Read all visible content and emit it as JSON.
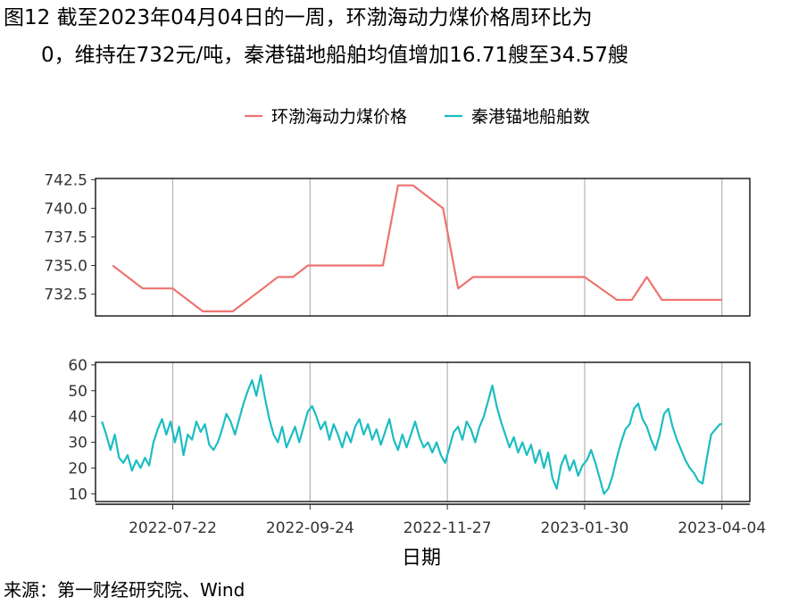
{
  "title": {
    "line1": "图12  截至2023年04月04日的一周，环渤海动力煤价格周环比为",
    "line2": "0，维持在732元/吨，秦港锚地船舶均值增加16.71艘至34.57艘"
  },
  "source": "来源：第一财经研究院、Wind",
  "colors": {
    "coal": "#ED7470",
    "ships": "#1CBDC2",
    "grid": "#b3b3b3"
  },
  "chart_data": [
    {
      "type": "line",
      "x_type": "date",
      "xlabel": "日期",
      "x_ticks": [
        "2022-07-22",
        "2022-09-24",
        "2022-11-27",
        "2023-01-30",
        "2023-04-04"
      ],
      "x_range": [
        "2022-06-16",
        "2023-04-17"
      ],
      "y_ticks": [
        "732.5",
        "735.0",
        "737.5",
        "740.0",
        "742.5"
      ],
      "ylim": [
        730.6,
        742.6
      ],
      "legend": "top-center",
      "series": [
        {
          "name": "环渤海动力煤价格",
          "color": "#ED7470",
          "points": [
            [
              "2022-06-24",
              735
            ],
            [
              "2022-07-08",
              733
            ],
            [
              "2022-07-22",
              733
            ],
            [
              "2022-08-05",
              731
            ],
            [
              "2022-08-19",
              731
            ],
            [
              "2022-09-02",
              733
            ],
            [
              "2022-09-09",
              734
            ],
            [
              "2022-09-16",
              734
            ],
            [
              "2022-09-23",
              735
            ],
            [
              "2022-10-28",
              735
            ],
            [
              "2022-11-04",
              742
            ],
            [
              "2022-11-11",
              742
            ],
            [
              "2022-11-25",
              740
            ],
            [
              "2022-12-02",
              733
            ],
            [
              "2022-12-09",
              734
            ],
            [
              "2023-01-30",
              734
            ],
            [
              "2023-02-14",
              732
            ],
            [
              "2023-02-21",
              732
            ],
            [
              "2023-02-28",
              734
            ],
            [
              "2023-03-07",
              732
            ],
            [
              "2023-03-21",
              732
            ],
            [
              "2023-04-04",
              732
            ]
          ]
        }
      ]
    },
    {
      "type": "line",
      "x_type": "date",
      "xlabel": "日期",
      "x_ticks": [
        "2022-07-22",
        "2022-09-24",
        "2022-11-27",
        "2023-01-30",
        "2023-04-04"
      ],
      "x_range": [
        "2022-06-16",
        "2023-04-17"
      ],
      "y_ticks": [
        "10",
        "20",
        "30",
        "40",
        "50",
        "60"
      ],
      "ylim": [
        7,
        61
      ],
      "series": [
        {
          "name": "秦港锚地船舶数",
          "color": "#1CBDC2",
          "points": [
            [
              "2022-06-19",
              38
            ],
            [
              "2022-06-21",
              33
            ],
            [
              "2022-06-23",
              27
            ],
            [
              "2022-06-25",
              33
            ],
            [
              "2022-06-27",
              24
            ],
            [
              "2022-06-29",
              22
            ],
            [
              "2022-07-01",
              25
            ],
            [
              "2022-07-03",
              19
            ],
            [
              "2022-07-05",
              23
            ],
            [
              "2022-07-07",
              20
            ],
            [
              "2022-07-09",
              24
            ],
            [
              "2022-07-11",
              21
            ],
            [
              "2022-07-13",
              30
            ],
            [
              "2022-07-15",
              35
            ],
            [
              "2022-07-17",
              39
            ],
            [
              "2022-07-19",
              33
            ],
            [
              "2022-07-21",
              38
            ],
            [
              "2022-07-23",
              30
            ],
            [
              "2022-07-25",
              36
            ],
            [
              "2022-07-27",
              25
            ],
            [
              "2022-07-29",
              33
            ],
            [
              "2022-07-31",
              31
            ],
            [
              "2022-08-02",
              38
            ],
            [
              "2022-08-04",
              34
            ],
            [
              "2022-08-06",
              37
            ],
            [
              "2022-08-08",
              29
            ],
            [
              "2022-08-10",
              27
            ],
            [
              "2022-08-12",
              30
            ],
            [
              "2022-08-14",
              35
            ],
            [
              "2022-08-16",
              41
            ],
            [
              "2022-08-18",
              38
            ],
            [
              "2022-08-20",
              33
            ],
            [
              "2022-08-22",
              39
            ],
            [
              "2022-08-24",
              45
            ],
            [
              "2022-08-26",
              50
            ],
            [
              "2022-08-28",
              54
            ],
            [
              "2022-08-30",
              48
            ],
            [
              "2022-09-01",
              56
            ],
            [
              "2022-09-03",
              47
            ],
            [
              "2022-09-05",
              39
            ],
            [
              "2022-09-07",
              33
            ],
            [
              "2022-09-09",
              30
            ],
            [
              "2022-09-11",
              36
            ],
            [
              "2022-09-13",
              28
            ],
            [
              "2022-09-15",
              32
            ],
            [
              "2022-09-17",
              36
            ],
            [
              "2022-09-19",
              30
            ],
            [
              "2022-09-21",
              36
            ],
            [
              "2022-09-23",
              42
            ],
            [
              "2022-09-25",
              44
            ],
            [
              "2022-09-27",
              40
            ],
            [
              "2022-09-29",
              35
            ],
            [
              "2022-10-01",
              38
            ],
            [
              "2022-10-03",
              31
            ],
            [
              "2022-10-05",
              37
            ],
            [
              "2022-10-07",
              33
            ],
            [
              "2022-10-09",
              28
            ],
            [
              "2022-10-11",
              34
            ],
            [
              "2022-10-13",
              30
            ],
            [
              "2022-10-15",
              36
            ],
            [
              "2022-10-17",
              39
            ],
            [
              "2022-10-19",
              33
            ],
            [
              "2022-10-21",
              37
            ],
            [
              "2022-10-23",
              31
            ],
            [
              "2022-10-25",
              35
            ],
            [
              "2022-10-27",
              29
            ],
            [
              "2022-10-29",
              34
            ],
            [
              "2022-10-31",
              39
            ],
            [
              "2022-11-02",
              31
            ],
            [
              "2022-11-04",
              27
            ],
            [
              "2022-11-06",
              33
            ],
            [
              "2022-11-08",
              28
            ],
            [
              "2022-11-10",
              33
            ],
            [
              "2022-11-12",
              38
            ],
            [
              "2022-11-14",
              32
            ],
            [
              "2022-11-16",
              28
            ],
            [
              "2022-11-18",
              30
            ],
            [
              "2022-11-20",
              26
            ],
            [
              "2022-11-22",
              30
            ],
            [
              "2022-11-24",
              25
            ],
            [
              "2022-11-26",
              22
            ],
            [
              "2022-11-28",
              28
            ],
            [
              "2022-11-30",
              34
            ],
            [
              "2022-12-02",
              36
            ],
            [
              "2022-12-04",
              31
            ],
            [
              "2022-12-06",
              38
            ],
            [
              "2022-12-08",
              35
            ],
            [
              "2022-12-10",
              30
            ],
            [
              "2022-12-12",
              36
            ],
            [
              "2022-12-14",
              40
            ],
            [
              "2022-12-16",
              46
            ],
            [
              "2022-12-18",
              52
            ],
            [
              "2022-12-20",
              44
            ],
            [
              "2022-12-22",
              38
            ],
            [
              "2022-12-24",
              33
            ],
            [
              "2022-12-26",
              28
            ],
            [
              "2022-12-28",
              32
            ],
            [
              "2022-12-30",
              26
            ],
            [
              "2023-01-01",
              30
            ],
            [
              "2023-01-03",
              25
            ],
            [
              "2023-01-05",
              29
            ],
            [
              "2023-01-07",
              22
            ],
            [
              "2023-01-09",
              27
            ],
            [
              "2023-01-11",
              20
            ],
            [
              "2023-01-13",
              26
            ],
            [
              "2023-01-15",
              16
            ],
            [
              "2023-01-17",
              12
            ],
            [
              "2023-01-19",
              21
            ],
            [
              "2023-01-21",
              25
            ],
            [
              "2023-01-23",
              19
            ],
            [
              "2023-01-25",
              23
            ],
            [
              "2023-01-27",
              17
            ],
            [
              "2023-01-29",
              21
            ],
            [
              "2023-01-31",
              23
            ],
            [
              "2023-02-02",
              27
            ],
            [
              "2023-02-04",
              22
            ],
            [
              "2023-02-06",
              16
            ],
            [
              "2023-02-08",
              10
            ],
            [
              "2023-02-10",
              12
            ],
            [
              "2023-02-12",
              17
            ],
            [
              "2023-02-14",
              24
            ],
            [
              "2023-02-16",
              30
            ],
            [
              "2023-02-18",
              35
            ],
            [
              "2023-02-20",
              37
            ],
            [
              "2023-02-22",
              43
            ],
            [
              "2023-02-24",
              45
            ],
            [
              "2023-02-26",
              39
            ],
            [
              "2023-02-28",
              36
            ],
            [
              "2023-03-02",
              31
            ],
            [
              "2023-03-04",
              27
            ],
            [
              "2023-03-06",
              33
            ],
            [
              "2023-03-08",
              41
            ],
            [
              "2023-03-10",
              43
            ],
            [
              "2023-03-12",
              36
            ],
            [
              "2023-03-14",
              31
            ],
            [
              "2023-03-16",
              27
            ],
            [
              "2023-03-18",
              23
            ],
            [
              "2023-03-20",
              20
            ],
            [
              "2023-03-22",
              18
            ],
            [
              "2023-03-24",
              15
            ],
            [
              "2023-03-26",
              14
            ],
            [
              "2023-03-28",
              24
            ],
            [
              "2023-03-30",
              33
            ],
            [
              "2023-04-01",
              35
            ],
            [
              "2023-04-03",
              37
            ],
            [
              "2023-04-04",
              37
            ]
          ]
        }
      ]
    }
  ]
}
